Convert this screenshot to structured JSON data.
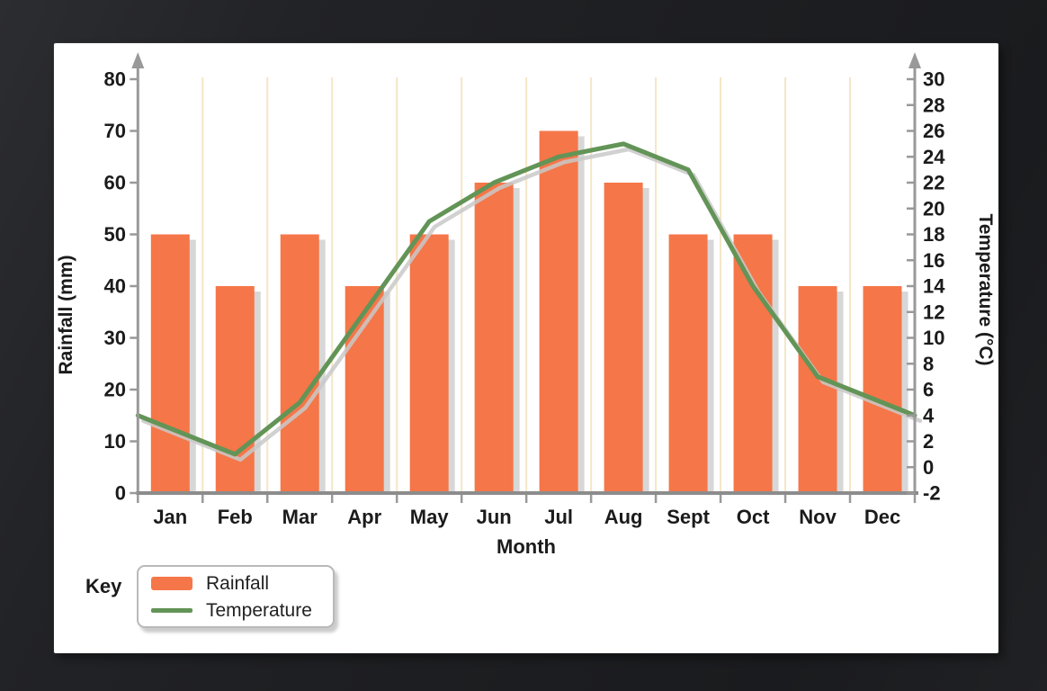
{
  "window": {
    "background_color": "#1f2023"
  },
  "panel": {
    "background_color": "#ffffff"
  },
  "chart_data": {
    "type": "bar",
    "subtype": "combo-bar-line-dual-axis",
    "categories": [
      "Jan",
      "Feb",
      "Mar",
      "Apr",
      "May",
      "Jun",
      "Jul",
      "Aug",
      "Sept",
      "Oct",
      "Nov",
      "Dec"
    ],
    "series": [
      {
        "name": "Rainfall",
        "type": "bar",
        "axis": "left",
        "unit": "mm",
        "color": "#f57648",
        "values": [
          50,
          40,
          50,
          40,
          50,
          60,
          70,
          60,
          50,
          50,
          40,
          40
        ]
      },
      {
        "name": "Temperature",
        "type": "line",
        "axis": "right",
        "unit": "°C",
        "color": "#639457",
        "values": [
          3,
          1,
          5,
          12,
          19,
          22,
          24,
          25,
          23,
          14,
          7,
          5
        ]
      }
    ],
    "xlabel": "Month",
    "y_left": {
      "title": "Rainfall (mm)",
      "min": 0,
      "max": 80,
      "ticks": [
        0,
        10,
        20,
        30,
        40,
        50,
        60,
        70,
        80
      ]
    },
    "y_right": {
      "title": "Temperature (°C)",
      "min": -2,
      "max": 30,
      "ticks": [
        -2,
        0,
        2,
        4,
        6,
        8,
        10,
        12,
        14,
        16,
        18,
        20,
        22,
        24,
        26,
        28,
        30
      ]
    },
    "grid": {
      "vertical": true,
      "horizontal": false,
      "color": "#f4e6c6"
    },
    "line_extends_to_plot_edges": true,
    "legend": {
      "position": "bottom-left",
      "key_label": "Key"
    }
  },
  "style": {
    "axis_color": "#999999",
    "baseline_color": "#8c8c8c",
    "shadow_color": "#c9c9c9",
    "text_color": "#1b1b1b"
  }
}
